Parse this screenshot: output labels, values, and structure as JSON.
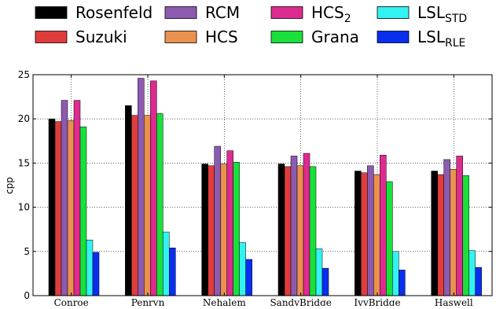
{
  "chart_data": {
    "type": "bar",
    "ylabel": "cpp",
    "xlabel": "",
    "ylim": [
      0,
      25
    ],
    "yticks": [
      0,
      5,
      10,
      15,
      20,
      25
    ],
    "grid": "dotted, both axes",
    "legend_position": "top",
    "categories": [
      "Conroe",
      "Penryn",
      "Nehalem",
      "SandyBridge",
      "IvyBridge",
      "Haswell"
    ],
    "series": [
      {
        "name": "Rosenfeld",
        "label_main": "Rosenfeld",
        "label_sub": "",
        "color": "#000000",
        "values": [
          20.0,
          21.5,
          14.9,
          14.9,
          14.1,
          14.1
        ]
      },
      {
        "name": "Suzuki",
        "label_main": "Suzuki",
        "label_sub": "",
        "color": "#e03c3c",
        "values": [
          19.7,
          20.4,
          14.7,
          14.6,
          13.9,
          13.7
        ]
      },
      {
        "name": "RCM",
        "label_main": "RCM",
        "label_sub": "",
        "color": "#8c5bb0",
        "values": [
          22.1,
          24.6,
          16.9,
          15.8,
          14.7,
          15.4
        ]
      },
      {
        "name": "HCS",
        "label_main": "HCS",
        "label_sub": "",
        "color": "#ea9150",
        "values": [
          19.8,
          20.4,
          14.9,
          14.7,
          13.7,
          14.3
        ]
      },
      {
        "name": "HCS2",
        "label_main": "HCS",
        "label_sub": "2",
        "color": "#de2b8f",
        "values": [
          22.1,
          24.3,
          16.4,
          16.1,
          15.9,
          15.8
        ]
      },
      {
        "name": "Grana",
        "label_main": "Grana",
        "label_sub": "",
        "color": "#19e03a",
        "values": [
          19.1,
          20.6,
          15.1,
          14.6,
          12.9,
          13.6
        ]
      },
      {
        "name": "LSL_STD",
        "label_main": "LSL",
        "label_sub": "STD",
        "color": "#33f2f2",
        "values": [
          6.3,
          7.2,
          6.0,
          5.3,
          5.0,
          5.1
        ]
      },
      {
        "name": "LSL_RLE",
        "label_main": "LSL",
        "label_sub": "RLE",
        "color": "#0a2ef0",
        "values": [
          4.9,
          5.4,
          4.1,
          3.1,
          2.9,
          3.2
        ]
      }
    ]
  }
}
